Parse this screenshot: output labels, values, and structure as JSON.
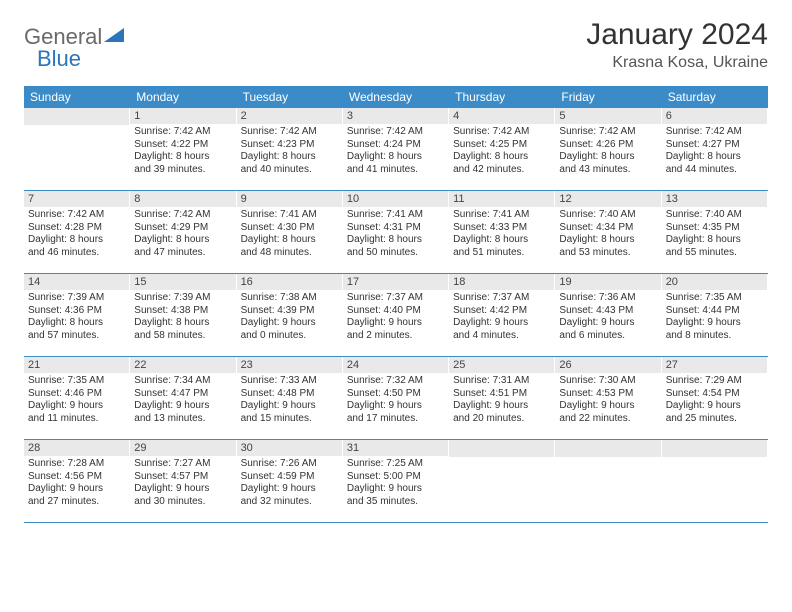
{
  "logo": {
    "text_gray": "General",
    "text_blue": "Blue"
  },
  "title": "January 2024",
  "location": "Krasna Kosa, Ukraine",
  "colors": {
    "header_bg": "#3b8bc9",
    "daynum_bg": "#e9e9e9",
    "divider": "#3b8bc9",
    "page_bg": "#ffffff",
    "logo_gray": "#6a6a6a",
    "logo_blue": "#2b75bb"
  },
  "days_of_week": [
    "Sunday",
    "Monday",
    "Tuesday",
    "Wednesday",
    "Thursday",
    "Friday",
    "Saturday"
  ],
  "weeks": [
    [
      null,
      {
        "n": "1",
        "sr": "Sunrise: 7:42 AM",
        "ss": "Sunset: 4:22 PM",
        "d1": "Daylight: 8 hours",
        "d2": "and 39 minutes."
      },
      {
        "n": "2",
        "sr": "Sunrise: 7:42 AM",
        "ss": "Sunset: 4:23 PM",
        "d1": "Daylight: 8 hours",
        "d2": "and 40 minutes."
      },
      {
        "n": "3",
        "sr": "Sunrise: 7:42 AM",
        "ss": "Sunset: 4:24 PM",
        "d1": "Daylight: 8 hours",
        "d2": "and 41 minutes."
      },
      {
        "n": "4",
        "sr": "Sunrise: 7:42 AM",
        "ss": "Sunset: 4:25 PM",
        "d1": "Daylight: 8 hours",
        "d2": "and 42 minutes."
      },
      {
        "n": "5",
        "sr": "Sunrise: 7:42 AM",
        "ss": "Sunset: 4:26 PM",
        "d1": "Daylight: 8 hours",
        "d2": "and 43 minutes."
      },
      {
        "n": "6",
        "sr": "Sunrise: 7:42 AM",
        "ss": "Sunset: 4:27 PM",
        "d1": "Daylight: 8 hours",
        "d2": "and 44 minutes."
      }
    ],
    [
      {
        "n": "7",
        "sr": "Sunrise: 7:42 AM",
        "ss": "Sunset: 4:28 PM",
        "d1": "Daylight: 8 hours",
        "d2": "and 46 minutes."
      },
      {
        "n": "8",
        "sr": "Sunrise: 7:42 AM",
        "ss": "Sunset: 4:29 PM",
        "d1": "Daylight: 8 hours",
        "d2": "and 47 minutes."
      },
      {
        "n": "9",
        "sr": "Sunrise: 7:41 AM",
        "ss": "Sunset: 4:30 PM",
        "d1": "Daylight: 8 hours",
        "d2": "and 48 minutes."
      },
      {
        "n": "10",
        "sr": "Sunrise: 7:41 AM",
        "ss": "Sunset: 4:31 PM",
        "d1": "Daylight: 8 hours",
        "d2": "and 50 minutes."
      },
      {
        "n": "11",
        "sr": "Sunrise: 7:41 AM",
        "ss": "Sunset: 4:33 PM",
        "d1": "Daylight: 8 hours",
        "d2": "and 51 minutes."
      },
      {
        "n": "12",
        "sr": "Sunrise: 7:40 AM",
        "ss": "Sunset: 4:34 PM",
        "d1": "Daylight: 8 hours",
        "d2": "and 53 minutes."
      },
      {
        "n": "13",
        "sr": "Sunrise: 7:40 AM",
        "ss": "Sunset: 4:35 PM",
        "d1": "Daylight: 8 hours",
        "d2": "and 55 minutes."
      }
    ],
    [
      {
        "n": "14",
        "sr": "Sunrise: 7:39 AM",
        "ss": "Sunset: 4:36 PM",
        "d1": "Daylight: 8 hours",
        "d2": "and 57 minutes."
      },
      {
        "n": "15",
        "sr": "Sunrise: 7:39 AM",
        "ss": "Sunset: 4:38 PM",
        "d1": "Daylight: 8 hours",
        "d2": "and 58 minutes."
      },
      {
        "n": "16",
        "sr": "Sunrise: 7:38 AM",
        "ss": "Sunset: 4:39 PM",
        "d1": "Daylight: 9 hours",
        "d2": "and 0 minutes."
      },
      {
        "n": "17",
        "sr": "Sunrise: 7:37 AM",
        "ss": "Sunset: 4:40 PM",
        "d1": "Daylight: 9 hours",
        "d2": "and 2 minutes."
      },
      {
        "n": "18",
        "sr": "Sunrise: 7:37 AM",
        "ss": "Sunset: 4:42 PM",
        "d1": "Daylight: 9 hours",
        "d2": "and 4 minutes."
      },
      {
        "n": "19",
        "sr": "Sunrise: 7:36 AM",
        "ss": "Sunset: 4:43 PM",
        "d1": "Daylight: 9 hours",
        "d2": "and 6 minutes."
      },
      {
        "n": "20",
        "sr": "Sunrise: 7:35 AM",
        "ss": "Sunset: 4:44 PM",
        "d1": "Daylight: 9 hours",
        "d2": "and 8 minutes."
      }
    ],
    [
      {
        "n": "21",
        "sr": "Sunrise: 7:35 AM",
        "ss": "Sunset: 4:46 PM",
        "d1": "Daylight: 9 hours",
        "d2": "and 11 minutes."
      },
      {
        "n": "22",
        "sr": "Sunrise: 7:34 AM",
        "ss": "Sunset: 4:47 PM",
        "d1": "Daylight: 9 hours",
        "d2": "and 13 minutes."
      },
      {
        "n": "23",
        "sr": "Sunrise: 7:33 AM",
        "ss": "Sunset: 4:48 PM",
        "d1": "Daylight: 9 hours",
        "d2": "and 15 minutes."
      },
      {
        "n": "24",
        "sr": "Sunrise: 7:32 AM",
        "ss": "Sunset: 4:50 PM",
        "d1": "Daylight: 9 hours",
        "d2": "and 17 minutes."
      },
      {
        "n": "25",
        "sr": "Sunrise: 7:31 AM",
        "ss": "Sunset: 4:51 PM",
        "d1": "Daylight: 9 hours",
        "d2": "and 20 minutes."
      },
      {
        "n": "26",
        "sr": "Sunrise: 7:30 AM",
        "ss": "Sunset: 4:53 PM",
        "d1": "Daylight: 9 hours",
        "d2": "and 22 minutes."
      },
      {
        "n": "27",
        "sr": "Sunrise: 7:29 AM",
        "ss": "Sunset: 4:54 PM",
        "d1": "Daylight: 9 hours",
        "d2": "and 25 minutes."
      }
    ],
    [
      {
        "n": "28",
        "sr": "Sunrise: 7:28 AM",
        "ss": "Sunset: 4:56 PM",
        "d1": "Daylight: 9 hours",
        "d2": "and 27 minutes."
      },
      {
        "n": "29",
        "sr": "Sunrise: 7:27 AM",
        "ss": "Sunset: 4:57 PM",
        "d1": "Daylight: 9 hours",
        "d2": "and 30 minutes."
      },
      {
        "n": "30",
        "sr": "Sunrise: 7:26 AM",
        "ss": "Sunset: 4:59 PM",
        "d1": "Daylight: 9 hours",
        "d2": "and 32 minutes."
      },
      {
        "n": "31",
        "sr": "Sunrise: 7:25 AM",
        "ss": "Sunset: 5:00 PM",
        "d1": "Daylight: 9 hours",
        "d2": "and 35 minutes."
      },
      null,
      null,
      null
    ]
  ]
}
